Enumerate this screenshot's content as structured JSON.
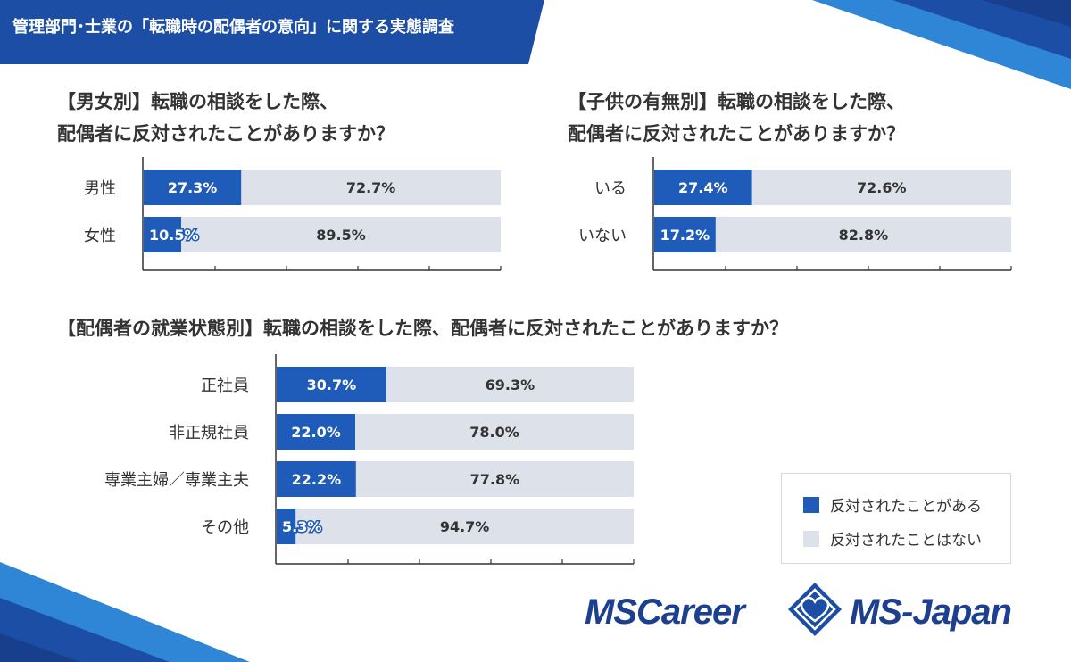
{
  "header": {
    "title": "管理部門･士業の「転職時の配偶者の意向」に関する実態調査"
  },
  "questions": {
    "gender": [
      "【男女別】転職の相談をした際、",
      "配偶者に反対されたことがありますか？"
    ],
    "children": [
      "【子供の有無別】転職の相談をした際、",
      "配偶者に反対されたことがありますか？"
    ],
    "employment": [
      "【配偶者の就業状態別】転職の相談をした際、配偶者に反対されたことがありますか？"
    ]
  },
  "legend": {
    "opposed": "反対されたことがある",
    "not_opposed": "反対されたことはない"
  },
  "brands": {
    "left": "MSCareer",
    "right": "MS-Japan"
  },
  "colors": {
    "opposed": "#1f5bb8",
    "not_opposed": "#dde1e9",
    "accent": "#1c4ea6",
    "brand": "#1c3f8f",
    "light_blue": "#2f86d6"
  },
  "icons": {
    "brand_mark": "diamond-heart-logo-icon"
  },
  "chart_data": [
    {
      "type": "bar",
      "stacked": true,
      "orientation": "horizontal",
      "categories": [
        "男性",
        "女性"
      ],
      "series": [
        {
          "name": "反対されたことがある",
          "values": [
            27.3,
            10.5
          ]
        },
        {
          "name": "反対されたことはない",
          "values": [
            72.7,
            89.5
          ]
        }
      ],
      "xlim": [
        0,
        100
      ],
      "unit": "%"
    },
    {
      "type": "bar",
      "stacked": true,
      "orientation": "horizontal",
      "categories": [
        "いる",
        "いない"
      ],
      "series": [
        {
          "name": "反対されたことがある",
          "values": [
            27.4,
            17.2
          ]
        },
        {
          "name": "反対されたことはない",
          "values": [
            72.6,
            82.8
          ]
        }
      ],
      "xlim": [
        0,
        100
      ],
      "unit": "%"
    },
    {
      "type": "bar",
      "stacked": true,
      "orientation": "horizontal",
      "categories": [
        "正社員",
        "非正規社員",
        "専業主婦／専業主夫",
        "その他"
      ],
      "series": [
        {
          "name": "反対されたことがある",
          "values": [
            30.7,
            22.0,
            22.2,
            5.3
          ]
        },
        {
          "name": "反対されたことはない",
          "values": [
            69.3,
            78.0,
            77.8,
            94.7
          ]
        }
      ],
      "xlim": [
        0,
        100
      ],
      "unit": "%",
      "legend_position": "bottom-right"
    }
  ]
}
